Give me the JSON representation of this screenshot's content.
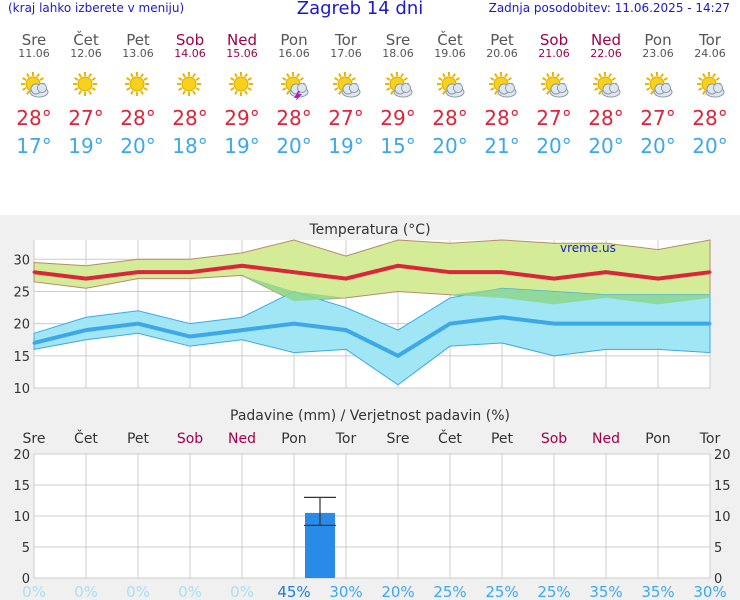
{
  "header": {
    "left_note": "(kraj lahko izberete v meniju)",
    "title": "Zagreb 14 dni",
    "updated": "Zadnja posodobitev: 11.06.2025 - 14:27"
  },
  "days": [
    {
      "name": "Sre",
      "date": "11.06",
      "weekend": false,
      "icon": "sun-cloud-icon",
      "max": "28°",
      "min": "17°"
    },
    {
      "name": "Čet",
      "date": "12.06",
      "weekend": false,
      "icon": "sun-icon",
      "max": "27°",
      "min": "19°"
    },
    {
      "name": "Pet",
      "date": "13.06",
      "weekend": false,
      "icon": "sun-icon",
      "max": "28°",
      "min": "20°"
    },
    {
      "name": "Sob",
      "date": "14.06",
      "weekend": true,
      "icon": "sun-icon",
      "max": "28°",
      "min": "18°"
    },
    {
      "name": "Ned",
      "date": "15.06",
      "weekend": true,
      "icon": "sun-icon",
      "max": "29°",
      "min": "19°"
    },
    {
      "name": "Pon",
      "date": "16.06",
      "weekend": false,
      "icon": "sun-cloud-storm-icon",
      "max": "28°",
      "min": "20°"
    },
    {
      "name": "Tor",
      "date": "17.06",
      "weekend": false,
      "icon": "sun-cloud-icon",
      "max": "27°",
      "min": "19°"
    },
    {
      "name": "Sre",
      "date": "18.06",
      "weekend": false,
      "icon": "sun-cloud-icon",
      "max": "29°",
      "min": "15°"
    },
    {
      "name": "Čet",
      "date": "19.06",
      "weekend": false,
      "icon": "sun-cloud-icon",
      "max": "28°",
      "min": "20°"
    },
    {
      "name": "Pet",
      "date": "20.06",
      "weekend": false,
      "icon": "sun-cloud-icon",
      "max": "28°",
      "min": "21°"
    },
    {
      "name": "Sob",
      "date": "21.06",
      "weekend": true,
      "icon": "sun-cloud-icon",
      "max": "27°",
      "min": "20°"
    },
    {
      "name": "Ned",
      "date": "22.06",
      "weekend": true,
      "icon": "sun-cloud-icon",
      "max": "28°",
      "min": "20°"
    },
    {
      "name": "Pon",
      "date": "23.06",
      "weekend": false,
      "icon": "sun-cloud-icon",
      "max": "27°",
      "min": "20°"
    },
    {
      "name": "Tor",
      "date": "24.06",
      "weekend": false,
      "icon": "sun-cloud-icon",
      "max": "28°",
      "min": "20°"
    }
  ],
  "colors": {
    "max_line": "#d9263a",
    "min_line": "#3ca8e8",
    "max_band": "#d4ec98",
    "min_band": "#a0e6f4",
    "overlap": "#8cd68c",
    "bar": "#2a8ae8",
    "weekend": "#a0004a"
  },
  "chart_data": [
    {
      "type": "line",
      "title": "Temperatura (°C)",
      "watermark": "vreme.us",
      "x": [
        "11.06",
        "12.06",
        "13.06",
        "14.06",
        "15.06",
        "16.06",
        "17.06",
        "18.06",
        "19.06",
        "20.06",
        "21.06",
        "22.06",
        "23.06",
        "24.06"
      ],
      "ylim": [
        10,
        33
      ],
      "yticks": [
        10,
        15,
        20,
        25,
        30
      ],
      "grid": true,
      "series": [
        {
          "values": [
            28,
            27,
            28,
            28,
            29,
            28,
            27,
            29,
            28,
            28,
            27,
            28,
            27,
            28
          ]
        },
        {
          "values": [
            17,
            19,
            20,
            18,
            19,
            20,
            19,
            15,
            20,
            21,
            20,
            20,
            20,
            20
          ]
        }
      ],
      "max_range": {
        "upper": [
          29.5,
          29,
          30,
          30,
          31,
          33,
          30.5,
          33,
          32.5,
          33,
          32.5,
          32.5,
          31.5,
          33
        ],
        "lower": [
          26.5,
          25.5,
          27,
          27,
          27.5,
          23.5,
          24,
          25,
          24.5,
          24,
          23,
          24,
          23,
          24
        ]
      },
      "min_range": {
        "upper": [
          18.5,
          21,
          22,
          20,
          21,
          25,
          22.5,
          19,
          24,
          25.5,
          25,
          24.5,
          24.5,
          24.5
        ],
        "lower": [
          16,
          17.5,
          18.5,
          16.5,
          17.5,
          15.5,
          16,
          10.5,
          16.5,
          17,
          15,
          16,
          16,
          15.5
        ]
      }
    },
    {
      "type": "bar",
      "title": "Padavine (mm) / Verjetnost padavin (%)",
      "categories": [
        "Sre",
        "Čet",
        "Pet",
        "Sob",
        "Ned",
        "Pon",
        "Tor",
        "Sre",
        "Čet",
        "Pet",
        "Sob",
        "Ned",
        "Pon",
        "Tor"
      ],
      "weekend": [
        false,
        false,
        false,
        true,
        true,
        false,
        false,
        false,
        false,
        false,
        true,
        true,
        false,
        false
      ],
      "values": [
        0,
        0,
        0,
        0,
        0,
        10.5,
        0,
        0,
        0,
        0,
        0,
        0,
        0,
        0
      ],
      "error": {
        "index": 5,
        "low": 8.5,
        "high": 13
      },
      "ylim": [
        0,
        20
      ],
      "yticks": [
        0,
        5,
        10,
        15,
        20
      ],
      "probability": [
        "0%",
        "0%",
        "0%",
        "0%",
        "0%",
        "45%",
        "30%",
        "20%",
        "25%",
        "25%",
        "25%",
        "35%",
        "35%",
        "30%"
      ]
    }
  ]
}
